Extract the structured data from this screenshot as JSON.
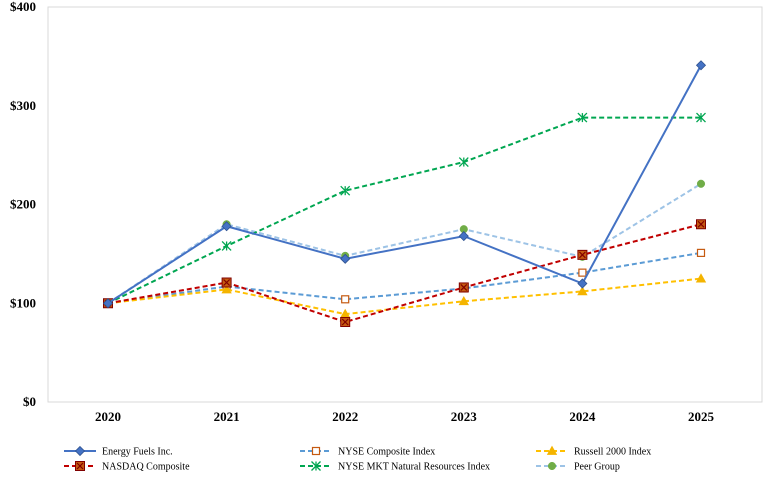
{
  "chart_data": {
    "type": "line",
    "title": "",
    "xlabel": "",
    "ylabel": "",
    "categories": [
      "2020",
      "2021",
      "2022",
      "2023",
      "2024",
      "2025"
    ],
    "ylim": [
      0,
      400
    ],
    "yticks": [
      0,
      100,
      200,
      300,
      400
    ],
    "ytick_labels": [
      "$0",
      "$100",
      "$200",
      "$300",
      "$400"
    ],
    "grid": false,
    "legend_position": "bottom",
    "series": [
      {
        "name": "Energy Fuels Inc.",
        "color": "#4472c4",
        "dash": "solid",
        "marker": "diamond",
        "values": [
          100,
          178,
          145,
          168,
          120,
          341
        ]
      },
      {
        "name": "NYSE Composite Index",
        "color": "#5b9bd5",
        "marker_color": "#c55a11",
        "dash": "dashed",
        "marker": "square-open",
        "values": [
          100,
          117,
          104,
          115,
          131,
          151
        ]
      },
      {
        "name": "Russell 2000 Index",
        "color": "#ffc000",
        "marker_color": "#f4b400",
        "dash": "dashed",
        "marker": "triangle",
        "values": [
          100,
          114,
          89,
          102,
          112,
          125
        ]
      },
      {
        "name": "NASDAQ Composite",
        "color": "#c00000",
        "marker_color": "#c55a11",
        "dash": "dashed",
        "marker": "square-x",
        "values": [
          100,
          121,
          81,
          116,
          149,
          180
        ]
      },
      {
        "name": "NYSE MKT Natural Resources Index",
        "color": "#00a651",
        "dash": "dashed",
        "marker": "star",
        "values": [
          100,
          158,
          214,
          243,
          288,
          288
        ]
      },
      {
        "name": "Peer Group",
        "color": "#9dc3e6",
        "marker_color": "#70ad47",
        "dash": "dashed",
        "marker": "circle",
        "values": [
          100,
          180,
          148,
          175,
          147,
          221
        ]
      }
    ]
  }
}
